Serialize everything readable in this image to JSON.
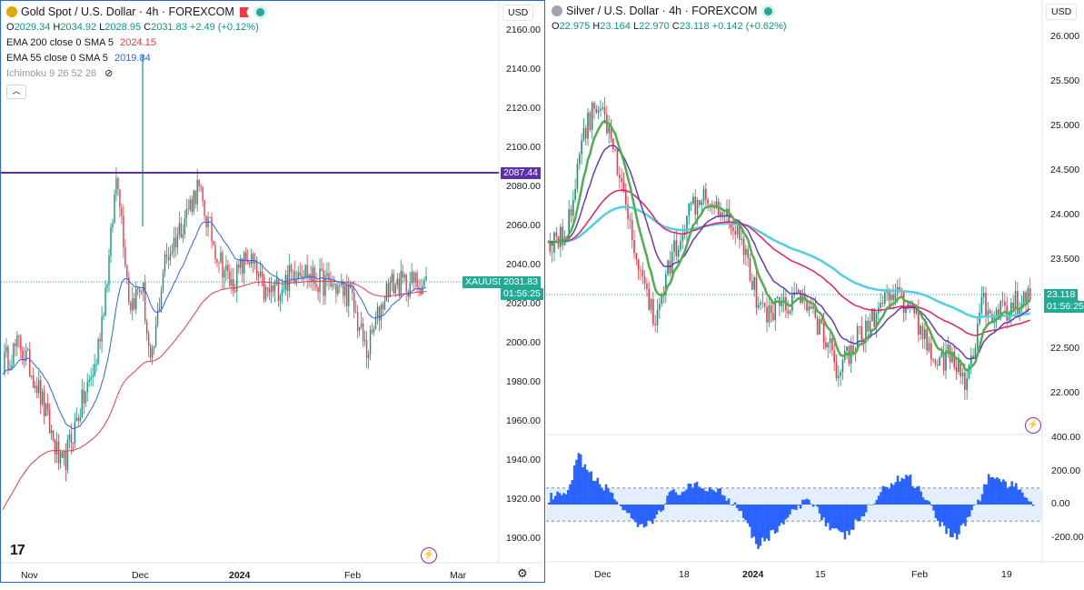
{
  "left": {
    "title": "Gold Spot / U.S. Dollar · 4h · FOREXCOM",
    "ohlc": {
      "o_label": "O",
      "o": "2029.34",
      "h_label": "H",
      "h": "2034.92",
      "l_label": "L",
      "l": "2028.95",
      "c_label": "C",
      "c": "2031.83",
      "chg": "+2.49 (+0.12%)"
    },
    "indicators": [
      {
        "label": "EMA 200 close 0 SMA 5",
        "value": "2024.15",
        "color": "#f23645"
      },
      {
        "label": "EMA 55 close 0 SMA 5",
        "value": "2019.84",
        "color": "#2962ff"
      },
      {
        "label": "Ichimoku 9 26 52 26",
        "value": "",
        "color": "#9598a1"
      }
    ],
    "currency": "USD",
    "y_ticks": [
      "2160.00",
      "2140.00",
      "2120.00",
      "2100.00",
      "2080.00",
      "2060.00",
      "2040.00",
      "2020.00",
      "2000.00",
      "1980.00",
      "1960.00",
      "1940.00",
      "1920.00",
      "1900.00"
    ],
    "x_ticks": [
      "Nov",
      "Dec",
      "2024",
      "Jan_hidden",
      "Feb",
      "Mar"
    ],
    "x_labels": [
      {
        "text": "Nov",
        "bold": false
      },
      {
        "text": "Dec",
        "bold": false
      },
      {
        "text": "2024",
        "bold": true
      },
      {
        "text": "Feb",
        "bold": false
      },
      {
        "text": "Mar",
        "bold": false
      }
    ],
    "hline_label": "2087.44",
    "symbol_tag": "XAUUSD",
    "price_tag": "2031.83",
    "countdown": "01:56:25",
    "logo": "17",
    "colors": {
      "hline": "#5b2fae",
      "up": "#089981",
      "down": "#f23645",
      "ema200": "#f23645",
      "ema55": "#2962ff",
      "tag": "#22ab94"
    }
  },
  "right": {
    "title": "Silver / U.S. Dollar · 4h · FOREXCOM",
    "ohlc": {
      "o_label": "O",
      "o": "22.975",
      "h_label": "H",
      "h": "23.164",
      "l_label": "L",
      "l": "22.970",
      "c_label": "C",
      "c": "23.118",
      "chg": "+0.142 (+0.62%)"
    },
    "currency": "USD",
    "y_ticks": [
      "26.000",
      "25.500",
      "25.000",
      "24.500",
      "24.000",
      "23.500",
      "23.000",
      "22.500",
      "22.000"
    ],
    "osc_ticks": [
      "400.00",
      "200.00",
      "0.00",
      "-200.00"
    ],
    "x_labels": [
      {
        "text": "Dec",
        "bold": false
      },
      {
        "text": "18",
        "bold": false
      },
      {
        "text": "2024",
        "bold": true
      },
      {
        "text": "15",
        "bold": false
      },
      {
        "text": "Feb",
        "bold": false
      },
      {
        "text": "19",
        "bold": false
      }
    ],
    "price_tag": "23.118",
    "countdown": "01:56:25",
    "colors": {
      "up": "#089981",
      "down": "#f23645",
      "green": "#4caf50",
      "purple": "#673ab7",
      "red": "#e91e63",
      "cyan": "#4dd0e1",
      "osc": "#2962ff"
    }
  }
}
